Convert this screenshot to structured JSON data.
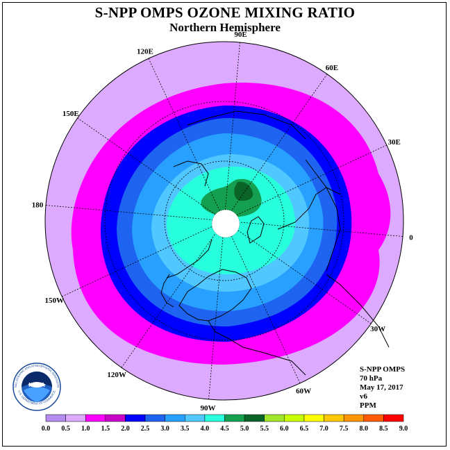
{
  "header": {
    "title": "S-NPP OMPS OZONE MIXING RATIO",
    "subtitle": "Northern Hemisphere"
  },
  "info": {
    "line1": "S-NPP OMPS",
    "line2": "70 hPa",
    "line3": "May 17, 2017",
    "line4": "v6",
    "line5": "PPM"
  },
  "longitude_labels": [
    "90E",
    "60E",
    "30E",
    "0",
    "30W",
    "60W",
    "90W",
    "120W",
    "150W",
    "180",
    "150E",
    "120E"
  ],
  "colorbar": {
    "ticks": [
      "0.0",
      "0.5",
      "1.0",
      "1.5",
      "2.0",
      "2.5",
      "3.0",
      "3.5",
      "4.0",
      "4.5",
      "5.0",
      "5.5",
      "6.0",
      "6.5",
      "7.0",
      "7.5",
      "8.0",
      "8.5",
      "9.0"
    ],
    "colors": [
      "#b48cf0",
      "#dcaaff",
      "#ff00ff",
      "#c800c8",
      "#0000ff",
      "#1e64f0",
      "#28a0ff",
      "#50c8ff",
      "#28ffdc",
      "#14a050",
      "#0a6428",
      "#a0e628",
      "#c8ff00",
      "#ffff00",
      "#ffc800",
      "#ff9600",
      "#ff5a00",
      "#ff0000",
      "#8c5a3c"
    ]
  },
  "logo": {
    "text": "NOAA",
    "ring_text": "NATIONAL OCEANIC AND ATMOSPHERIC ADMINISTRATION",
    "bottom_text": "U.S. DEPARTMENT OF COMMERCE"
  }
}
